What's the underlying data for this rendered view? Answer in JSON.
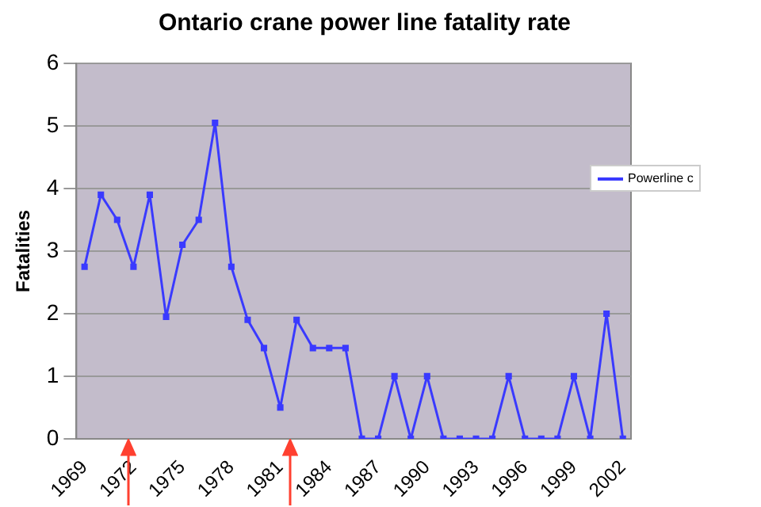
{
  "chart_data": {
    "type": "line",
    "title": "Ontario crane power line fatality rate",
    "ylabel": "Fatalities",
    "categories": [
      "1969",
      null,
      null,
      "1972",
      null,
      null,
      "1975",
      null,
      null,
      "1978",
      null,
      null,
      "1981",
      null,
      null,
      "1984",
      null,
      null,
      "1987",
      null,
      null,
      "1990",
      null,
      null,
      "1993",
      null,
      null,
      "1996",
      null,
      null,
      "1999",
      null,
      null,
      "2002"
    ],
    "series": [
      {
        "name": "Powerline c",
        "color": "#3a3aff",
        "values": [
          2.75,
          3.9,
          3.5,
          2.75,
          3.9,
          1.95,
          3.1,
          3.5,
          5.05,
          2.75,
          1.9,
          1.45,
          0.5,
          1.9,
          1.45,
          1.45,
          1.45,
          0,
          0,
          1,
          0,
          1,
          0,
          0,
          0,
          0,
          1,
          0,
          0,
          0,
          1,
          0,
          2,
          0
        ]
      }
    ],
    "ylim": [
      0,
      6
    ],
    "yticks": [
      0,
      1,
      2,
      3,
      4,
      5,
      6
    ],
    "grid": "y",
    "legend": "right",
    "marker": "square",
    "line_style": "solid"
  }
}
